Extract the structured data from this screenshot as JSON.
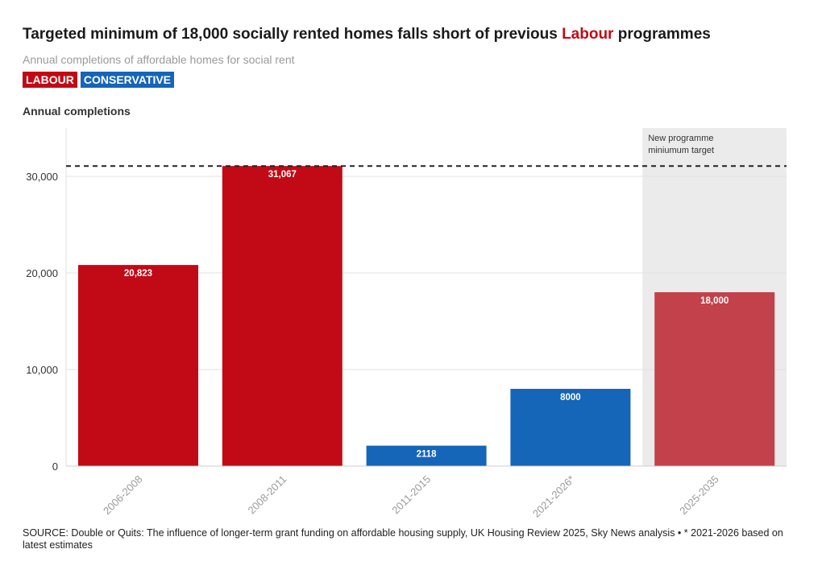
{
  "title_pre": "Targeted minimum of 18,000 socially rented homes falls short of previous ",
  "title_highlight": "Labour",
  "title_post": " programmes",
  "subtitle": "Annual completions of affordable homes for social rent",
  "legend": [
    {
      "label": "LABOUR",
      "color": "#c10a16"
    },
    {
      "label": "CONSERVATIVE",
      "color": "#1565b8"
    }
  ],
  "source": "SOURCE: Double or Quits: The influence of longer-term grant funding on affordable housing supply, UK Housing Review 2025, Sky News analysis • * 2021-2026 based on latest estimates",
  "chart_data": {
    "type": "bar",
    "title": "Targeted minimum of 18,000 socially rented homes falls short of previous Labour programmes",
    "ylabel": "Annual completions",
    "xlabel": "",
    "ylim": [
      0,
      34000
    ],
    "yticks": [
      0,
      10000,
      20000,
      30000
    ],
    "ytick_labels": [
      "0",
      "10,000",
      "20,000",
      "30,000"
    ],
    "categories": [
      "2006-2008",
      "2008-2011",
      "2011-2015",
      "2021-2026*",
      "2025-2035"
    ],
    "values": [
      20823,
      31067,
      2118,
      8000,
      18000
    ],
    "value_labels": [
      "20,823",
      "31,067",
      "2118",
      "8000",
      "18,000"
    ],
    "parties": [
      "LABOUR",
      "LABOUR",
      "CONSERVATIVE",
      "CONSERVATIVE",
      "LABOUR"
    ],
    "colors": [
      "#c10a16",
      "#c10a16",
      "#1565b8",
      "#1565b8",
      "#c2414a"
    ],
    "reference_line": {
      "value": 31067,
      "style": "dashed"
    },
    "annotation": {
      "text_line1": "New programme",
      "text_line2": "miniumum target",
      "category": "2025-2035"
    }
  }
}
